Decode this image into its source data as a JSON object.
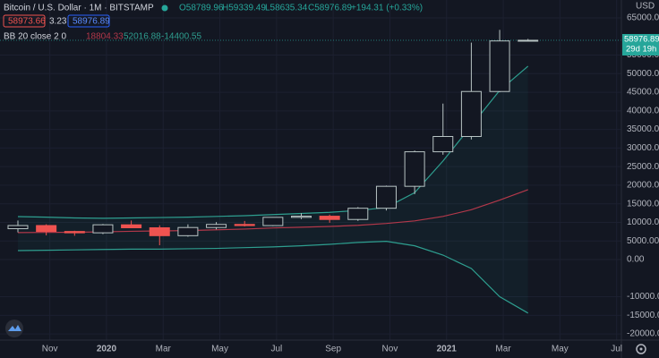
{
  "header": {
    "title": "Bitcoin / U.S. Dollar · 1M · BITSTAMP",
    "ohlc": [
      "O58789.96",
      "H59339.49",
      "L58635.34",
      "C58976.89",
      "+194.31 (+0.33%)"
    ],
    "sell": "58973.66",
    "spread": "3.23",
    "buy": "58976.89",
    "indicator": "BB 20 close 2 0",
    "indicator_values": [
      "18804.33",
      "52016.88",
      "-14400.55"
    ],
    "currency": "USD",
    "countdown": "29d 19h"
  },
  "chart_data": {
    "type": "candlestick",
    "categories": [
      null,
      "Nov",
      null,
      "2020",
      null,
      "Mar",
      null,
      "May",
      null,
      "Jul",
      null,
      "Sep",
      null,
      "Nov",
      null,
      "2021",
      null,
      "Mar",
      null,
      "May",
      null,
      "Jul"
    ],
    "open": [
      8300,
      9150,
      7550,
      7190,
      9350,
      8550,
      6420,
      8620,
      9450,
      9140,
      11350,
      11660,
      10780,
      13800,
      19700,
      28990,
      33100,
      45200,
      58789.96,
      null,
      null,
      null
    ],
    "high": [
      10500,
      9500,
      7750,
      9570,
      10500,
      9200,
      9470,
      10080,
      10380,
      11440,
      12470,
      12080,
      14100,
      19890,
      29300,
      41950,
      58350,
      61780,
      59339.49,
      null,
      null,
      null
    ],
    "low": [
      7300,
      6500,
      6400,
      6850,
      8450,
      3850,
      6150,
      8120,
      8900,
      8980,
      10900,
      9900,
      10400,
      13200,
      17600,
      28200,
      32300,
      45000,
      58635.34,
      null,
      null,
      null
    ],
    "close": [
      9150,
      7550,
      7190,
      9350,
      8550,
      6420,
      8620,
      9450,
      9140,
      11350,
      11660,
      10780,
      13800,
      19700,
      28990,
      33100,
      45200,
      58800,
      58976.89,
      null,
      null,
      null
    ],
    "up_color": "#b8c4c4",
    "down_color": "#ef5350",
    "overlays": [
      {
        "color": "#2e9e8f",
        "values": [
          11550,
          11400,
          11200,
          11100,
          11200,
          11300,
          11400,
          11600,
          11800,
          12100,
          12400,
          12700,
          13200,
          14000,
          18000,
          26500,
          36000,
          45500,
          52016.88,
          null,
          null,
          null
        ]
      },
      {
        "color": "#b2384a",
        "values": [
          7250,
          7300,
          7350,
          7450,
          7600,
          7700,
          7800,
          8000,
          8200,
          8500,
          8700,
          8900,
          9200,
          9700,
          10400,
          11600,
          13400,
          16000,
          18804.33,
          null,
          null,
          null
        ]
      },
      {
        "color": "#2e9e8f",
        "values": [
          2400,
          2500,
          2600,
          2700,
          2800,
          2800,
          2900,
          3000,
          3200,
          3400,
          3700,
          4100,
          4600,
          4900,
          3700,
          1200,
          -2400,
          -10000,
          -14400.55,
          null,
          null,
          null
        ]
      }
    ],
    "band_fill": "rgba(38,166,154,0.06)",
    "ylim": [
      -21665,
      69810
    ],
    "yticks": [
      {
        "value": 65000,
        "label": "65000.00"
      },
      {
        "value": 55000,
        "label": "55000.00"
      },
      {
        "value": 50000,
        "label": "50000.00"
      },
      {
        "value": 45000,
        "label": "45000.00"
      },
      {
        "value": 40000,
        "label": "40000.00"
      },
      {
        "value": 35000,
        "label": "35000.00"
      },
      {
        "value": 30000,
        "label": "30000.00"
      },
      {
        "value": 25000,
        "label": "25000.00"
      },
      {
        "value": 20000,
        "label": "20000.00"
      },
      {
        "value": 15000,
        "label": "15000.00"
      },
      {
        "value": 10000,
        "label": "10000.00"
      },
      {
        "value": 5000,
        "label": "5000.00"
      },
      {
        "value": 0,
        "label": "0.00"
      },
      {
        "value": -10000,
        "label": "-10000.00"
      },
      {
        "value": -15000,
        "label": "-15000.00"
      },
      {
        "value": -20000,
        "label": "-20000.00"
      }
    ],
    "grid": true,
    "price_color": "#26a69a"
  }
}
